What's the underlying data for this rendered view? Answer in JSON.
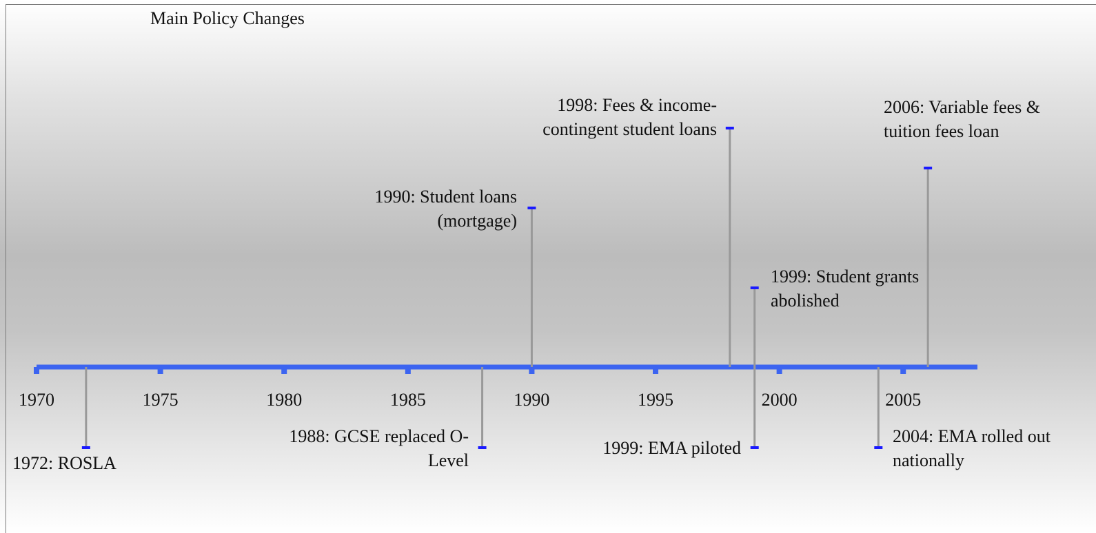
{
  "chart_data": {
    "type": "timeline",
    "title": "Main Policy Changes",
    "xlim": [
      1970,
      2008
    ],
    "xticks": [
      1970,
      1975,
      1980,
      1985,
      1990,
      1995,
      2000,
      2005
    ],
    "axis_color": "#3c64f0",
    "stem_color": "#999999",
    "cap_color": "#1a1aff",
    "events": [
      {
        "year": 1972,
        "label": "1972: ROSLA"
      },
      {
        "year": 1988,
        "label": "1988: GCSE replaced O-Level"
      },
      {
        "year": 1990,
        "label": "1990: Student loans (mortgage)"
      },
      {
        "year": 1998,
        "label": "1998: Fees & income-contingent student loans"
      },
      {
        "year": 1999,
        "label": "1999: Student grants abolished"
      },
      {
        "year": 1999,
        "label": "1999: EMA piloted"
      },
      {
        "year": 2004,
        "label": "2004: EMA rolled out nationally"
      },
      {
        "year": 2006,
        "label": "2006: Variable fees & tuition fees loan"
      }
    ]
  }
}
